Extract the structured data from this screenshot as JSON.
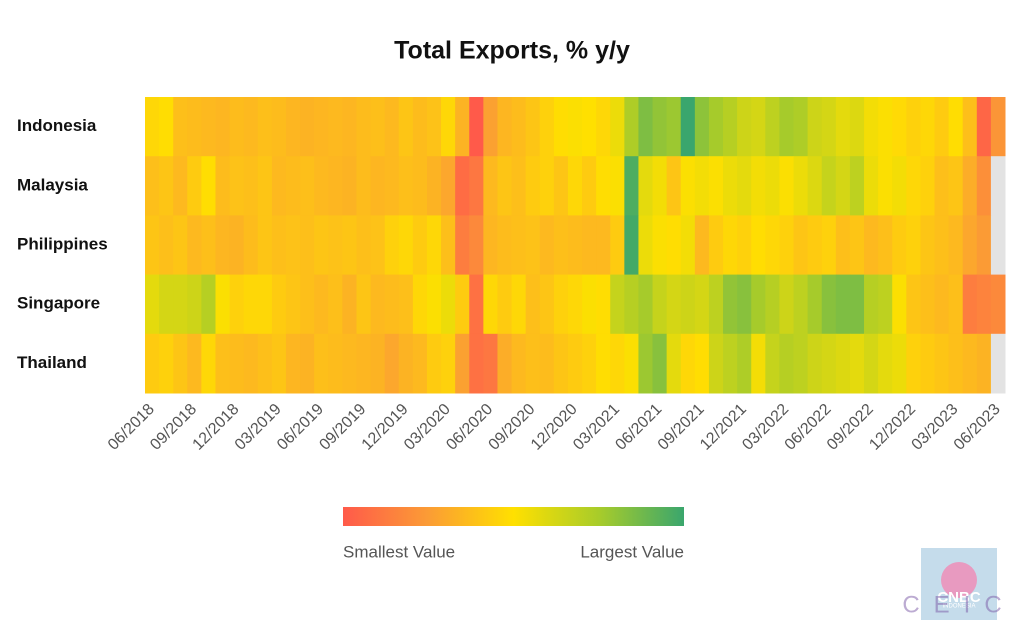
{
  "chart_data": {
    "type": "heatmap",
    "title": "Total Exports, % y/y",
    "categories": [
      "06/2018",
      null,
      null,
      "09/2018",
      null,
      null,
      "12/2018",
      null,
      null,
      "03/2019",
      null,
      null,
      "06/2019",
      null,
      null,
      "09/2019",
      null,
      null,
      "12/2019",
      null,
      null,
      "03/2020",
      null,
      null,
      "06/2020",
      null,
      null,
      "09/2020",
      null,
      null,
      "12/2020",
      null,
      null,
      "03/2021",
      null,
      null,
      "06/2021",
      null,
      null,
      "09/2021",
      null,
      null,
      "12/2021",
      null,
      null,
      "03/2022",
      null,
      null,
      "06/2022",
      null,
      null,
      "09/2022",
      null,
      null,
      "12/2022",
      null,
      null,
      "03/2023",
      null,
      null,
      "06/2023"
    ],
    "series": [
      {
        "name": "Indonesia",
        "values": [
          14,
          16,
          6,
          5,
          4,
          3,
          5,
          4,
          6,
          5,
          3,
          2,
          3,
          4,
          3,
          5,
          6,
          4,
          8,
          5,
          7,
          14,
          2,
          -28,
          -4,
          3,
          5,
          8,
          12,
          16,
          18,
          17,
          14,
          22,
          38,
          48,
          44,
          42,
          62,
          45,
          40,
          36,
          30,
          28,
          34,
          40,
          38,
          30,
          28,
          24,
          26,
          20,
          18,
          15,
          12,
          14,
          10,
          16,
          6,
          -24,
          -8
        ]
      },
      {
        "name": "Malaysia",
        "values": [
          6,
          8,
          4,
          10,
          16,
          5,
          7,
          6,
          8,
          4,
          5,
          6,
          4,
          3,
          2,
          5,
          3,
          4,
          6,
          5,
          2,
          -2,
          -22,
          -18,
          4,
          8,
          6,
          10,
          12,
          8,
          14,
          10,
          16,
          18,
          58,
          24,
          20,
          8,
          18,
          20,
          18,
          22,
          24,
          20,
          22,
          18,
          22,
          26,
          32,
          28,
          34,
          22,
          18,
          20,
          14,
          12,
          6,
          8,
          0,
          -10,
          null
        ]
      },
      {
        "name": "Philippines",
        "values": [
          8,
          6,
          8,
          4,
          6,
          3,
          2,
          5,
          8,
          6,
          7,
          6,
          8,
          7,
          8,
          6,
          7,
          12,
          14,
          10,
          14,
          6,
          -16,
          -12,
          3,
          5,
          6,
          7,
          4,
          6,
          5,
          4,
          4,
          10,
          60,
          22,
          18,
          16,
          20,
          4,
          10,
          14,
          12,
          16,
          14,
          12,
          8,
          10,
          12,
          6,
          8,
          4,
          6,
          10,
          12,
          8,
          6,
          4,
          -2,
          -6,
          null
        ]
      },
      {
        "name": "Singapore",
        "values": [
          24,
          28,
          28,
          30,
          36,
          18,
          12,
          14,
          14,
          10,
          8,
          6,
          4,
          6,
          2,
          8,
          4,
          5,
          6,
          14,
          18,
          22,
          10,
          -20,
          14,
          10,
          14,
          6,
          8,
          12,
          14,
          18,
          16,
          32,
          36,
          40,
          32,
          28,
          30,
          28,
          34,
          44,
          46,
          40,
          36,
          30,
          34,
          40,
          46,
          48,
          48,
          36,
          34,
          18,
          8,
          6,
          4,
          6,
          -16,
          -14,
          -12
        ]
      },
      {
        "name": "Thailand",
        "values": [
          10,
          12,
          8,
          4,
          14,
          6,
          5,
          4,
          6,
          8,
          3,
          2,
          6,
          5,
          4,
          3,
          2,
          -2,
          2,
          4,
          10,
          12,
          -4,
          -20,
          -18,
          0,
          4,
          6,
          5,
          8,
          10,
          12,
          16,
          14,
          18,
          42,
          46,
          24,
          14,
          16,
          30,
          34,
          38,
          20,
          32,
          36,
          34,
          30,
          28,
          26,
          24,
          28,
          24,
          22,
          12,
          10,
          8,
          6,
          4,
          2,
          null
        ]
      }
    ],
    "colorscale": [
      "#ff5a4a",
      "#fb9c35",
      "#ffe000",
      "#a8cc2a",
      "#3aa66d"
    ],
    "missing_color": "#e3e3e3",
    "legend": {
      "min_label": "Smallest Value",
      "max_label": "Largest Value"
    },
    "logo": {
      "text": "CNBC",
      "subtext": "INDONESIA",
      "watermark": "CEIC"
    }
  }
}
